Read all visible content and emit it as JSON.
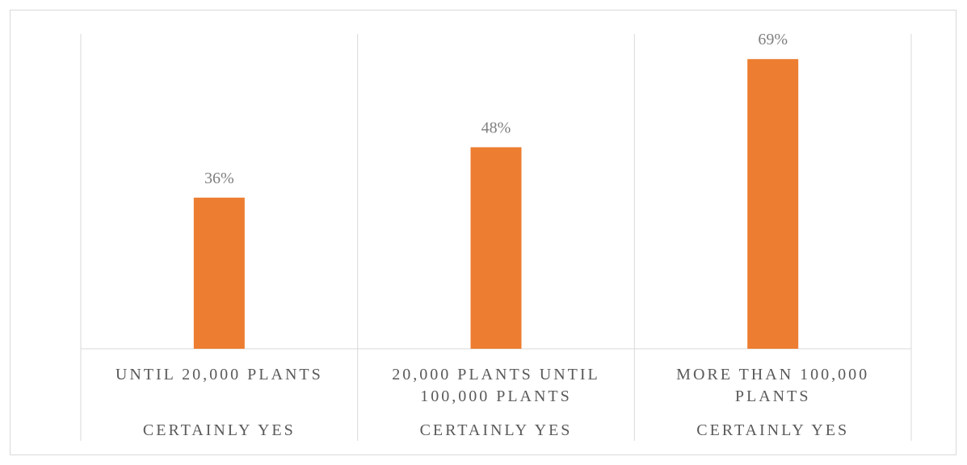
{
  "chart_data": {
    "type": "bar",
    "categories": [
      [
        "UNTIL 20,000 PLANTS"
      ],
      [
        "20,000 PLANTS  UNTIL",
        "100,000 PLANTS"
      ],
      [
        "MORE THAN 100,000",
        "PLANTS"
      ]
    ],
    "sub_categories": [
      "CERTAINLY YES",
      "CERTAINLY YES",
      "CERTAINLY YES"
    ],
    "series": [
      {
        "values": [
          36,
          48,
          69
        ],
        "data_labels": [
          "36%",
          "48%",
          "69%"
        ],
        "color": "#ED7D31"
      }
    ],
    "ylim": [
      0,
      75
    ],
    "grid": false,
    "legend": "none"
  }
}
